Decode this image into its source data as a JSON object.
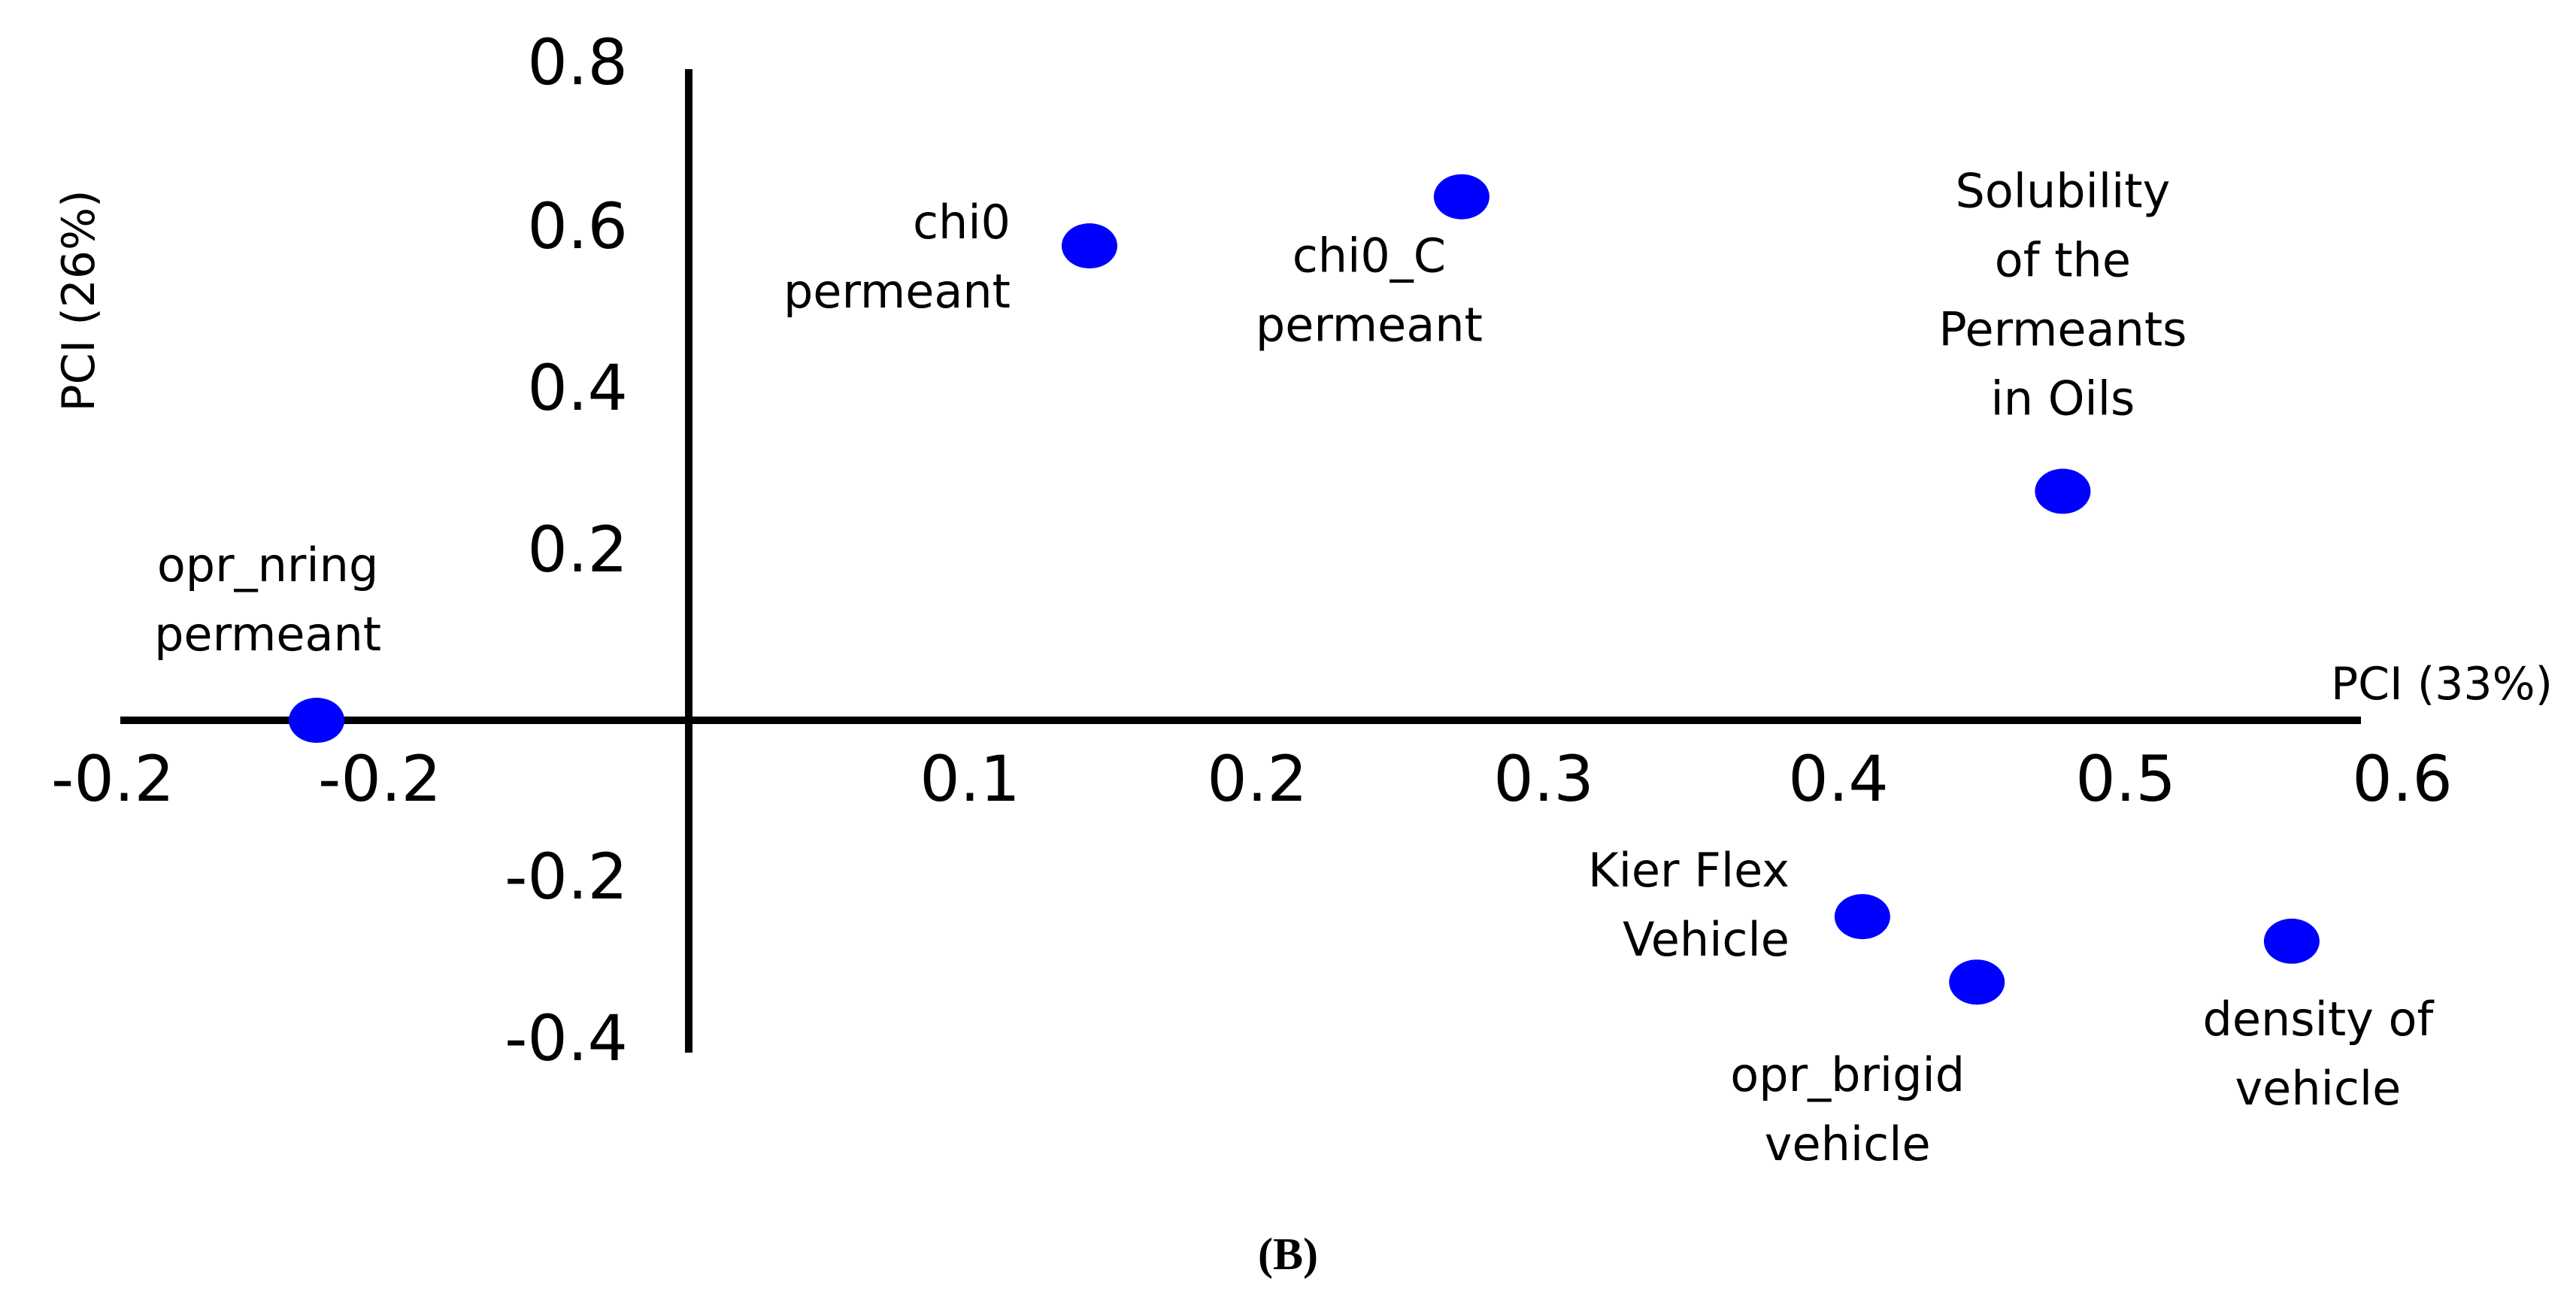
{
  "chart_data": {
    "type": "scatter",
    "xlabel": "PCI (33%)",
    "ylabel": "PCI (26%)",
    "xlim": [
      -0.2,
      0.6
    ],
    "ylim": [
      -0.4,
      0.8
    ],
    "x_tick_labels": [
      "-0.2",
      "-0.2",
      "0.1",
      "0.2",
      "0.3",
      "0.4",
      "0.5",
      "0.6"
    ],
    "y_tick_labels": [
      "0.8",
      "0.6",
      "0.4",
      "0.2",
      "-0.2",
      "-0.4"
    ],
    "points": [
      {
        "label_lines": [
          "opr_nring",
          "permeant"
        ],
        "x": -0.13,
        "y": 0.0
      },
      {
        "label_lines": [
          "chi0",
          "permeant"
        ],
        "x": 0.14,
        "y": 0.58
      },
      {
        "label_lines": [
          "chi0_C",
          "permeant"
        ],
        "x": 0.27,
        "y": 0.64
      },
      {
        "label_lines": [
          "Solubility",
          "of the",
          "Permeants",
          "in Oils"
        ],
        "x": 0.48,
        "y": 0.28
      },
      {
        "label_lines": [
          "Kier Flex",
          "Vehicle"
        ],
        "x": 0.41,
        "y": -0.24
      },
      {
        "label_lines": [
          "opr_brigid",
          "vehicle"
        ],
        "x": 0.45,
        "y": -0.32
      },
      {
        "label_lines": [
          "density of",
          "vehicle"
        ],
        "x": 0.56,
        "y": -0.27
      }
    ],
    "marker_color": "#0000ff",
    "grid": false,
    "legend": "none"
  },
  "panel_label": "(B)"
}
